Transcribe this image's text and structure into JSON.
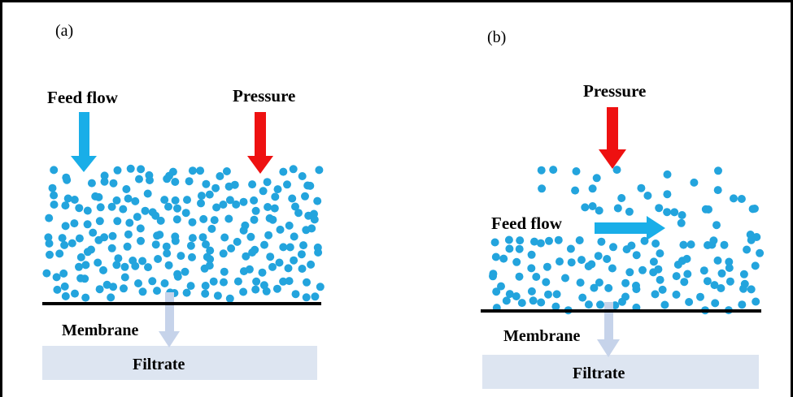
{
  "panel_a": {
    "panel_label": "(a)",
    "feed_flow_label": "Feed flow",
    "pressure_label": "Pressure",
    "membrane_label": "Membrane",
    "filtrate_label": "Filtrate"
  },
  "panel_b": {
    "panel_label": "(b)",
    "feed_flow_label": "Feed flow",
    "pressure_label": "Pressure",
    "membrane_label": "Membrane",
    "filtrate_label": "Filtrate"
  },
  "colors": {
    "particle": "#23a4dd",
    "feed_arrow": "#19aee8",
    "pressure_arrow": "#ee1111",
    "filtrate_box": "#dde5f1",
    "filtrate_arrow": "#c6d3ea",
    "membrane": "#000000"
  }
}
